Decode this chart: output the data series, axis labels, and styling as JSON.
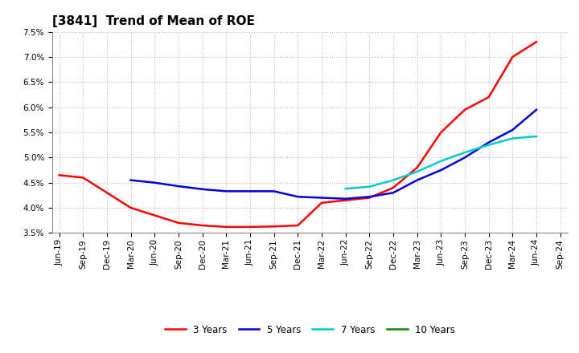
{
  "title": "[3841]  Trend of Mean of ROE",
  "background_color": "#ffffff",
  "grid_color": "#bbbbbb",
  "series_order": [
    "3 Years",
    "5 Years",
    "7 Years",
    "10 Years"
  ],
  "series": {
    "3 Years": {
      "color": "#ff0000",
      "data": [
        4.65,
        4.6,
        4.3,
        4.0,
        3.85,
        3.7,
        3.65,
        3.62,
        3.62,
        3.63,
        3.65,
        4.1,
        4.15,
        4.2,
        4.4,
        4.8,
        5.5,
        5.95,
        6.2,
        7.0,
        7.3,
        null
      ]
    },
    "5 Years": {
      "color": "#0000dd",
      "data": [
        null,
        null,
        null,
        4.55,
        4.5,
        4.43,
        4.37,
        4.33,
        4.33,
        4.33,
        4.22,
        4.2,
        4.18,
        4.22,
        4.3,
        4.55,
        4.75,
        5.0,
        5.3,
        5.55,
        5.95,
        null
      ]
    },
    "7 Years": {
      "color": "#00cccc",
      "data": [
        null,
        null,
        null,
        null,
        null,
        null,
        null,
        null,
        null,
        null,
        null,
        null,
        4.38,
        4.42,
        4.55,
        4.72,
        4.93,
        5.1,
        5.25,
        5.38,
        5.42,
        null
      ]
    },
    "10 Years": {
      "color": "#008800",
      "data": [
        null,
        null,
        null,
        null,
        null,
        null,
        null,
        null,
        null,
        null,
        null,
        null,
        null,
        null,
        null,
        null,
        null,
        null,
        null,
        null,
        null,
        null
      ]
    }
  },
  "x_labels": [
    "Jun-19",
    "Sep-19",
    "Dec-19",
    "Mar-20",
    "Jun-20",
    "Sep-20",
    "Dec-20",
    "Mar-21",
    "Jun-21",
    "Sep-21",
    "Dec-21",
    "Mar-22",
    "Jun-22",
    "Sep-22",
    "Dec-22",
    "Mar-23",
    "Jun-23",
    "Sep-23",
    "Dec-23",
    "Mar-24",
    "Jun-24",
    "Sep-24"
  ],
  "ylim": [
    3.5,
    7.5
  ],
  "yticks": [
    3.5,
    4.0,
    4.5,
    5.0,
    5.5,
    6.0,
    6.5,
    7.0,
    7.5
  ],
  "title_fontsize": 11,
  "tick_fontsize": 7.5,
  "legend_fontsize": 8.5,
  "linewidth": 1.8
}
